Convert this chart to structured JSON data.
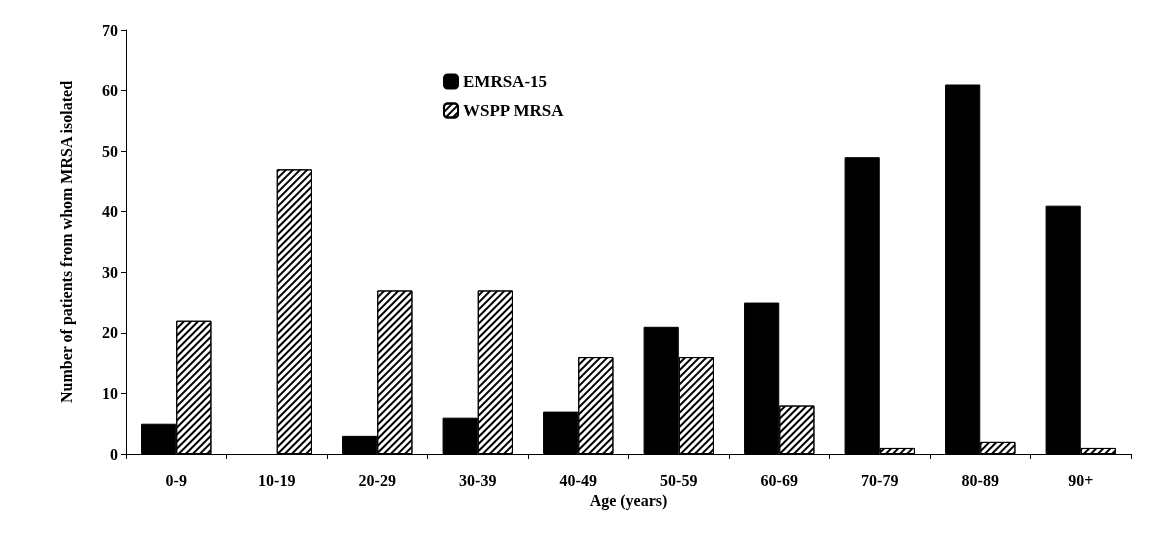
{
  "chart_data": {
    "type": "bar",
    "xlabel": "Age (years)",
    "ylabel": "Number of patients from whom MRSA isolated",
    "categories": [
      "0-9",
      "10-19",
      "20-29",
      "30-39",
      "40-49",
      "50-59",
      "60-69",
      "70-79",
      "80-89",
      "90+"
    ],
    "series": [
      {
        "name": "EMRSA-15",
        "color": "#000000",
        "values": [
          5,
          0,
          3,
          6,
          7,
          21,
          25,
          49,
          61,
          41
        ]
      },
      {
        "name": "WSPP MRSA",
        "color": "#ffffff",
        "values": [
          22,
          47,
          27,
          27,
          16,
          16,
          8,
          1,
          2,
          1
        ]
      }
    ],
    "ylim": [
      0,
      70
    ],
    "yticks": [
      0,
      10,
      20,
      30,
      40,
      50,
      60,
      70
    ],
    "grid": false,
    "legend": "top"
  }
}
